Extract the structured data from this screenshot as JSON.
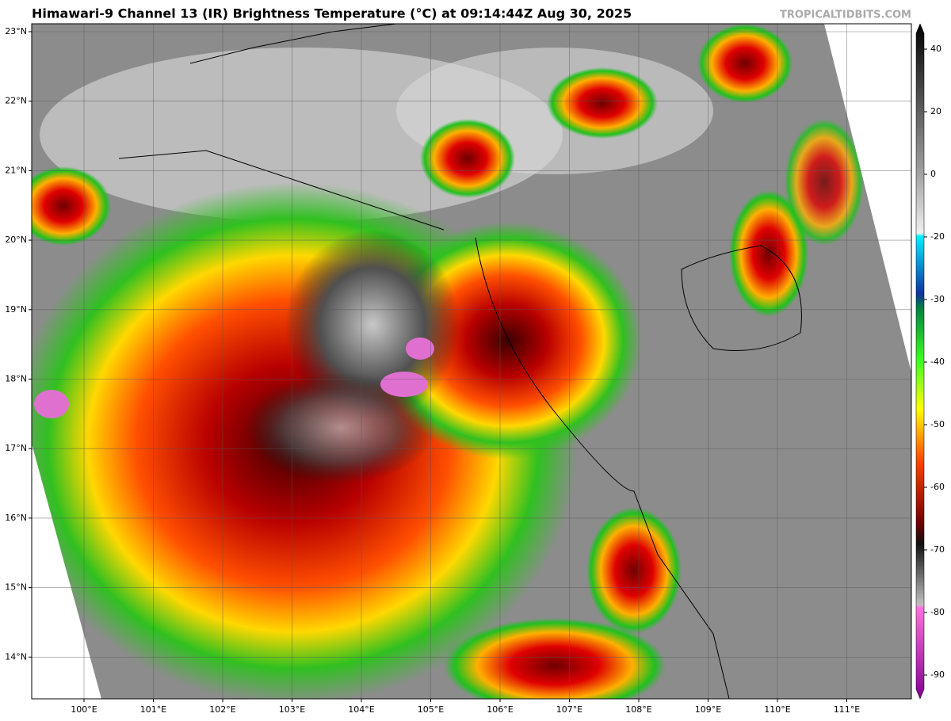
{
  "header": {
    "title": "Himawari-9 Channel 13 (IR) Brightness Temperature (°C) at 09:14:44Z Aug 30, 2025",
    "watermark": "TROPICALTIDBITS.COM"
  },
  "map": {
    "lat_ticks": [
      {
        "value": 23,
        "label": "23°N"
      },
      {
        "value": 22,
        "label": "22°N"
      },
      {
        "value": 21,
        "label": "21°N"
      },
      {
        "value": 20,
        "label": "20°N"
      },
      {
        "value": 19,
        "label": "19°N"
      },
      {
        "value": 18,
        "label": "18°N"
      },
      {
        "value": 17,
        "label": "17°N"
      },
      {
        "value": 16,
        "label": "16°N"
      },
      {
        "value": 15,
        "label": "15°N"
      },
      {
        "value": 14,
        "label": "14°N"
      }
    ],
    "lon_ticks": [
      {
        "value": 100,
        "label": "100°E"
      },
      {
        "value": 101,
        "label": "101°E"
      },
      {
        "value": 102,
        "label": "102°E"
      },
      {
        "value": 103,
        "label": "103°E"
      },
      {
        "value": 104,
        "label": "104°E"
      },
      {
        "value": 105,
        "label": "105°E"
      },
      {
        "value": 106,
        "label": "106°E"
      },
      {
        "value": 107,
        "label": "107°E"
      },
      {
        "value": 108,
        "label": "108°E"
      },
      {
        "value": 109,
        "label": "109°E"
      },
      {
        "value": 110,
        "label": "110°E"
      },
      {
        "value": 111,
        "label": "111°E"
      }
    ]
  },
  "colorbar": {
    "ticks": [
      40,
      20,
      0,
      -20,
      -30,
      -40,
      -50,
      -60,
      -70,
      -80,
      -90
    ]
  }
}
